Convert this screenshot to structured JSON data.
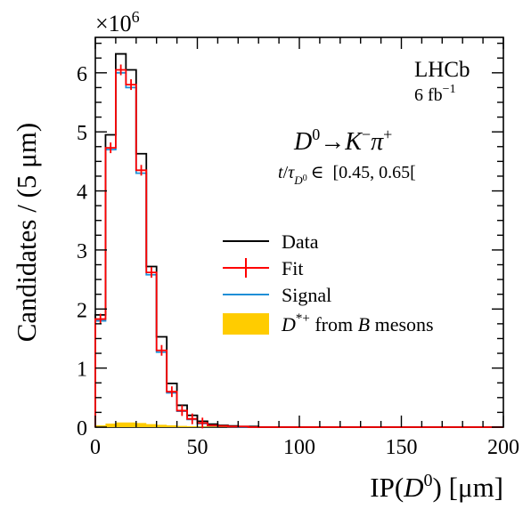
{
  "chart_data": {
    "type": "histogram",
    "experiment": "LHCb",
    "luminosity": "6 fb",
    "luminosity_exp": "−1",
    "decay": {
      "D": "D",
      "D_sup": "0",
      "arrow": "→",
      "K": "K",
      "K_sup": "−",
      "pi": "π",
      "pi_sup": "+"
    },
    "time_bin": {
      "t": "t",
      "slash": "/",
      "tau": "τ",
      "sub": "D",
      "subsup": "0",
      "in": "∈",
      "range": "[0.45, 0.65["
    },
    "xlabel": {
      "pre": "IP(",
      "var": "D",
      "sup": "0",
      "post": ") [μm]"
    },
    "ylabel": "Candidates / (5 μm)",
    "y_multiplier": {
      "base": "×10",
      "exp": "6"
    },
    "xlim": [
      0,
      200
    ],
    "ylim": [
      0,
      6.6
    ],
    "x_ticks": [
      "0",
      "50",
      "100",
      "150",
      "200"
    ],
    "y_ticks": [
      "0",
      "1",
      "2",
      "3",
      "4",
      "5",
      "6"
    ],
    "bin_width": 5,
    "bin_edges_start": 0,
    "series": [
      {
        "name": "Data",
        "color": "#000000",
        "values": [
          1.9,
          4.95,
          6.32,
          6.05,
          4.63,
          2.72,
          1.53,
          0.74,
          0.37,
          0.2,
          0.1,
          0.05,
          0.03,
          0.02,
          0.01,
          0.01,
          0.0,
          0.0,
          0.0,
          0.0,
          0.0,
          0.0,
          0.0,
          0.0,
          0.0,
          0.0,
          0.0,
          0.0,
          0.0,
          0.0,
          0.0,
          0.0,
          0.0,
          0.0,
          0.0,
          0.0,
          0.0,
          0.0,
          0.0,
          0.0
        ]
      },
      {
        "name": "Fit",
        "color": "#ff0000",
        "values": [
          1.83,
          4.73,
          6.05,
          5.8,
          4.35,
          2.62,
          1.3,
          0.6,
          0.28,
          0.14,
          0.07,
          0.03,
          0.02,
          0.01,
          0.01,
          0.0,
          0.0,
          0.0,
          0.0,
          0.0,
          0.0,
          0.0,
          0.0,
          0.0,
          0.0,
          0.0,
          0.0,
          0.0,
          0.0,
          0.0,
          0.0,
          0.0,
          0.0,
          0.0,
          0.0,
          0.0,
          0.0,
          0.0,
          0.0,
          0.0
        ]
      },
      {
        "name": "Signal",
        "color": "#1f8fd6",
        "values": [
          1.8,
          4.7,
          6.0,
          5.75,
          4.3,
          2.58,
          1.27,
          0.58,
          0.27,
          0.13,
          0.06,
          0.03,
          0.02,
          0.01,
          0.0,
          0.0,
          0.0,
          0.0,
          0.0,
          0.0,
          0.0,
          0.0,
          0.0,
          0.0,
          0.0,
          0.0,
          0.0,
          0.0,
          0.0,
          0.0,
          0.0,
          0.0,
          0.0,
          0.0,
          0.0,
          0.0,
          0.0,
          0.0,
          0.0,
          0.0
        ]
      },
      {
        "name": "D*+ from B mesons",
        "color": "#ffcc00",
        "values": [
          0.03,
          0.06,
          0.08,
          0.08,
          0.07,
          0.05,
          0.04,
          0.03,
          0.02,
          0.015,
          0.01,
          0.008,
          0.005,
          0.003,
          0.002,
          0.0,
          0.0,
          0.0,
          0.0,
          0.0,
          0.0,
          0.0,
          0.0,
          0.0,
          0.0,
          0.0,
          0.0,
          0.0,
          0.0,
          0.0,
          0.0,
          0.0,
          0.0,
          0.0,
          0.0,
          0.0,
          0.0,
          0.0,
          0.0,
          0.0
        ]
      }
    ],
    "legend": {
      "data": "Data",
      "fit": "Fit",
      "signal": "Signal",
      "bkg_D": "D",
      "bkg_sup": "*+",
      "bkg_mid": " from ",
      "bkg_B": "B",
      "bkg_end": " mesons"
    },
    "grid": false,
    "legend_position": "center-right"
  }
}
